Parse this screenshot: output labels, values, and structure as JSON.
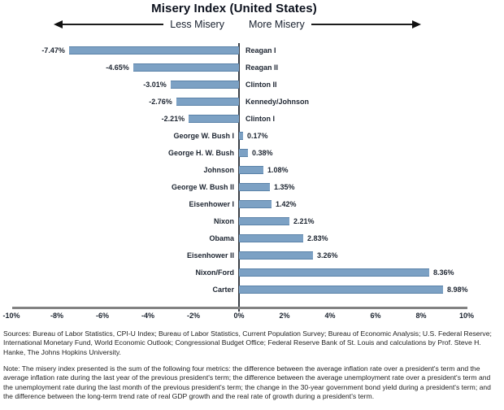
{
  "header": {
    "title": "Misery Index (United States)",
    "less_label": "Less Misery",
    "more_label": "More Misery"
  },
  "chart_data": {
    "type": "bar",
    "orientation": "horizontal-diverging",
    "title": "Misery Index (United States)",
    "categories": [
      "Reagan I",
      "Reagan II",
      "Clinton II",
      "Kennedy/Johnson",
      "Clinton I",
      "George W. Bush I",
      "George H. W. Bush",
      "Johnson",
      "George W. Bush II",
      "Eisenhower I",
      "Nixon",
      "Obama",
      "Eisenhower II",
      "Nixon/Ford",
      "Carter"
    ],
    "values": [
      -7.47,
      -4.65,
      -3.01,
      -2.76,
      -2.21,
      0.17,
      0.38,
      1.08,
      1.35,
      1.42,
      2.21,
      2.83,
      3.26,
      8.36,
      8.98
    ],
    "value_labels": [
      "-7.47%",
      "-4.65%",
      "-3.01%",
      "-2.76%",
      "-2.21%",
      "0.17%",
      "0.38%",
      "1.08%",
      "1.35%",
      "1.42%",
      "2.21%",
      "2.83%",
      "3.26%",
      "8.36%",
      "8.98%"
    ],
    "xlim": [
      -10,
      10
    ],
    "ticks": [
      {
        "label": "-10%",
        "value": -10
      },
      {
        "label": "-8%",
        "value": -8
      },
      {
        "label": "-6%",
        "value": -6
      },
      {
        "label": "-4%",
        "value": -4
      },
      {
        "label": "-2%",
        "value": -2
      },
      {
        "label": "0%",
        "value": 0
      },
      {
        "label": "2%",
        "value": 2
      },
      {
        "label": "4%",
        "value": 4
      },
      {
        "label": "6%",
        "value": 6
      },
      {
        "label": "8%",
        "value": 8
      },
      {
        "label": "10%",
        "value": 10
      }
    ],
    "bar_color": "#7ca1c4",
    "bar_border_color": "#5a82a8",
    "legend": "none",
    "grid": "off"
  },
  "footer": {
    "sources": "Sources: Bureau of Labor Statistics, CPI-U Index; Bureau of Labor Statistics, Current Population Survey; Bureau of Economic Analysis; U.S. Federal Reserve; International Monetary Fund, World Economic Outlook; Congressional Budget Office; Federal Reserve Bank of St. Louis and calculations by Prof. Steve H. Hanke, The Johns Hopkins University.",
    "note": "Note: The misery index presented is the sum of the following four metrics: the difference between the average inflation rate over a president's term and the average inflation rate during the last year of the previous president's term; the difference between the average unemployment rate over a president's term and the unemployment rate during the last month of the previous president's term; the change in the 30-year government bond yield during a president's term; and the difference between the long-term trend rate of real GDP growth and the real rate of growth during a president's term."
  }
}
